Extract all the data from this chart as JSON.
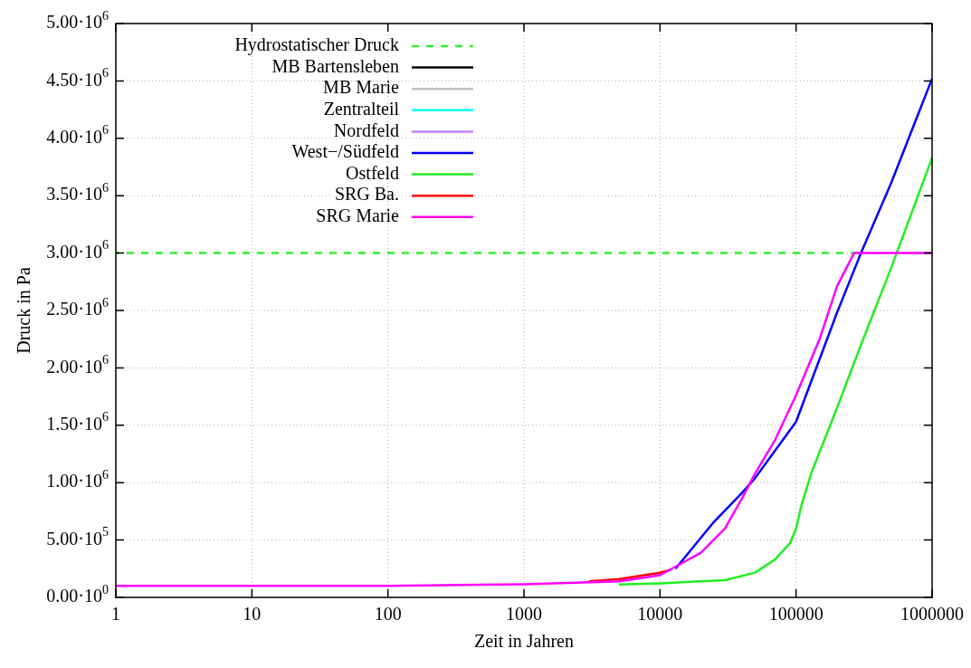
{
  "chart_data": {
    "type": "line",
    "xlabel": "Zeit in Jahren",
    "ylabel": "Druck in Pa",
    "log": "x",
    "grid": true,
    "legend": "top left",
    "marker": "none",
    "xlim": [
      1,
      1000000
    ],
    "xticks": [
      1,
      10,
      100,
      1000,
      10000,
      100000,
      1000000
    ],
    "ylim": [
      0,
      5000000
    ],
    "yticks": [
      {
        "value": 0,
        "label": "0.00·10$^{0}$"
      },
      {
        "value": 500000,
        "label": "5.00·10$^{5}$"
      },
      {
        "value": 1000000,
        "label": "1.00·10$^{6}$"
      },
      {
        "value": 1500000,
        "label": "1.50·10$^{6}$"
      },
      {
        "value": 2000000,
        "label": "2.00·10$^{6}$"
      },
      {
        "value": 2500000,
        "label": "2.50·10$^{6}$"
      },
      {
        "value": 3000000,
        "label": "3.00·10$^{6}$"
      },
      {
        "value": 3500000,
        "label": "3.50·10$^{6}$"
      },
      {
        "value": 4000000,
        "label": "4.00·10$^{6}$"
      },
      {
        "value": 4500000,
        "label": "4.50·10$^{6}$"
      },
      {
        "value": 5000000,
        "label": "5.00·10$^{6}$"
      }
    ],
    "series": [
      {
        "name": "Hydrostatischer Druck",
        "color": "#33ee33",
        "line_style": "dashed",
        "x": [
          1,
          267000
        ],
        "values": [
          3000000,
          3000000
        ]
      },
      {
        "name": "MB Bartensleben",
        "color": "#000000"
      },
      {
        "name": "MB Marie",
        "color": "#c0c0c0"
      },
      {
        "name": "Zentralteil",
        "color": "#00ffff"
      },
      {
        "name": "Nordfeld",
        "color": "#c080ff"
      },
      {
        "name": "West−/Südfeld",
        "color": "#0000ff",
        "x": [
          13000,
          20000,
          25000,
          40000,
          50000,
          100000,
          200000,
          300000,
          500000,
          1000000
        ],
        "values": [
          250000,
          520000,
          660000,
          910000,
          1040000,
          1530000,
          2480000,
          3000000,
          3610000,
          4520000
        ]
      },
      {
        "name": "Ostfeld",
        "color": "#22ee22",
        "x": [
          5000,
          10000,
          30000,
          50000,
          70000,
          90000,
          100000,
          110000,
          130000,
          200000,
          300000,
          500000,
          1000000
        ],
        "values": [
          112000,
          123000,
          150000,
          216000,
          330000,
          470000,
          600000,
          810000,
          1090000,
          1650000,
          2200000,
          2870000,
          3830000
        ]
      },
      {
        "name": "SRG Ba.",
        "color": "#ff0000",
        "x": [
          3000,
          5000,
          10000,
          12000
        ],
        "values": [
          140000,
          160000,
          215000,
          240000
        ]
      },
      {
        "name": "SRG Marie",
        "color": "#ff00ff",
        "x": [
          1,
          100,
          1000,
          5000,
          10000,
          20000,
          30000,
          40000,
          50000,
          70000,
          100000,
          150000,
          200000,
          267000,
          1000000
        ],
        "values": [
          100000,
          100000,
          115000,
          140000,
          193000,
          390000,
          600000,
          860000,
          1080000,
          1370000,
          1760000,
          2260000,
          2710000,
          3000000,
          3000000
        ]
      }
    ]
  }
}
